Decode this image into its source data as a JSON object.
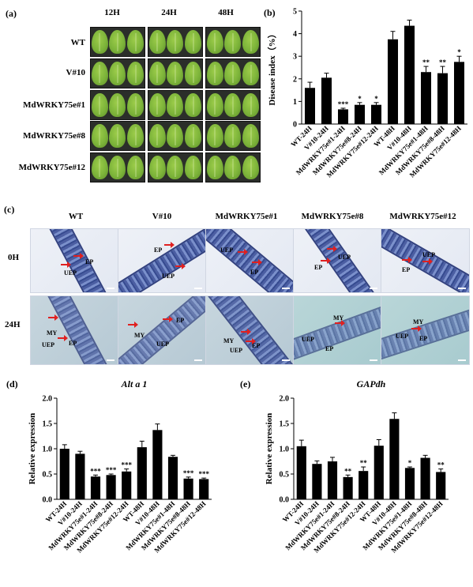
{
  "panel_a": {
    "label": "(a)",
    "col_headers": [
      "12H",
      "24H",
      "48H"
    ],
    "row_labels": [
      "WT",
      "V#10",
      "MdWRKY75e#1",
      "MdWRKY75e#8",
      "MdWRKY75e#12"
    ]
  },
  "panel_c": {
    "label": "(c)",
    "col_headers": [
      "WT",
      "V#10",
      "MdWRKY75e#1",
      "MdWRKY75e#8",
      "MdWRKY75e#12"
    ],
    "row_labels": [
      "0H",
      "24H"
    ],
    "micro_labels": {
      "ep": "EP",
      "uep": "UEP",
      "my": "MY"
    }
  },
  "chart_data": [
    {
      "panel": "(b)",
      "type": "bar",
      "title": "",
      "ylabel": "Disease index（%）",
      "xlabel": "",
      "ylim": [
        0,
        5
      ],
      "yticks": [
        "0",
        "1",
        "2",
        "3",
        "4",
        "5"
      ],
      "categories": [
        "WT-24H",
        "V#10-24H",
        "MdWRKY75e#1-24H",
        "MdWRKY75e#8-24H",
        "MdWRKY75e#12-24H",
        "WT-48H",
        "V#10-48H",
        "MdWRKY75e#1-48H",
        "MdWRKY75e#8-48H",
        "MdWRKY75e#12-48H"
      ],
      "values": [
        1.6,
        2.05,
        0.65,
        0.85,
        0.85,
        3.75,
        4.35,
        2.3,
        2.25,
        2.75
      ],
      "errors": [
        0.25,
        0.2,
        0.05,
        0.1,
        0.1,
        0.35,
        0.25,
        0.25,
        0.3,
        0.25
      ],
      "significance": [
        "",
        "",
        "***",
        "*",
        "*",
        "",
        "",
        "**",
        "**",
        "*"
      ]
    },
    {
      "panel": "(d)",
      "type": "bar",
      "title": "Alt a 1",
      "ylabel": "Relative expression",
      "xlabel": "",
      "ylim": [
        0,
        2.0
      ],
      "yticks": [
        "0.0",
        "0.5",
        "1.0",
        "1.5",
        "2.0"
      ],
      "categories": [
        "WT-24H",
        "V#10-24H",
        "MdWRKY75e#1-24H",
        "MdWRKY75e#8-24H",
        "MdWRKY75e#12-24H",
        "WT-48H",
        "V#10-48H",
        "MdWRKY75e#1-48H",
        "MdWRKY75e#8-48H",
        "MdWRKY75e#12-48H"
      ],
      "values": [
        1.0,
        0.9,
        0.45,
        0.48,
        0.55,
        1.03,
        1.37,
        0.84,
        0.41,
        0.4
      ],
      "errors": [
        0.08,
        0.05,
        0.03,
        0.02,
        0.05,
        0.12,
        0.12,
        0.03,
        0.03,
        0.02
      ],
      "significance": [
        "",
        "",
        "***",
        "***",
        "***",
        "",
        "",
        "",
        "***",
        "***"
      ]
    },
    {
      "panel": "(e)",
      "type": "bar",
      "title": "GAPdh",
      "ylabel": "Relative expression",
      "xlabel": "",
      "ylim": [
        0,
        2.0
      ],
      "yticks": [
        "0.0",
        "0.5",
        "1.0",
        "1.5",
        "2.0"
      ],
      "categories": [
        "WT-24H",
        "V#10-24H",
        "MdWRKY75e#1-24H",
        "MdWRKY75e#8-24H",
        "MdWRKY75e#12-24H",
        "WT-48H",
        "V#10-48H",
        "MdWRKY75e#1-48H",
        "MdWRKY75e#8-48H",
        "MdWRKY75e#12-48H"
      ],
      "values": [
        1.05,
        0.7,
        0.75,
        0.44,
        0.56,
        1.06,
        1.59,
        0.62,
        0.82,
        0.54
      ],
      "errors": [
        0.12,
        0.06,
        0.08,
        0.04,
        0.08,
        0.12,
        0.12,
        0.02,
        0.05,
        0.06
      ],
      "significance": [
        "",
        "",
        "",
        "**",
        "**",
        "",
        "",
        "*",
        "",
        "**"
      ]
    }
  ]
}
